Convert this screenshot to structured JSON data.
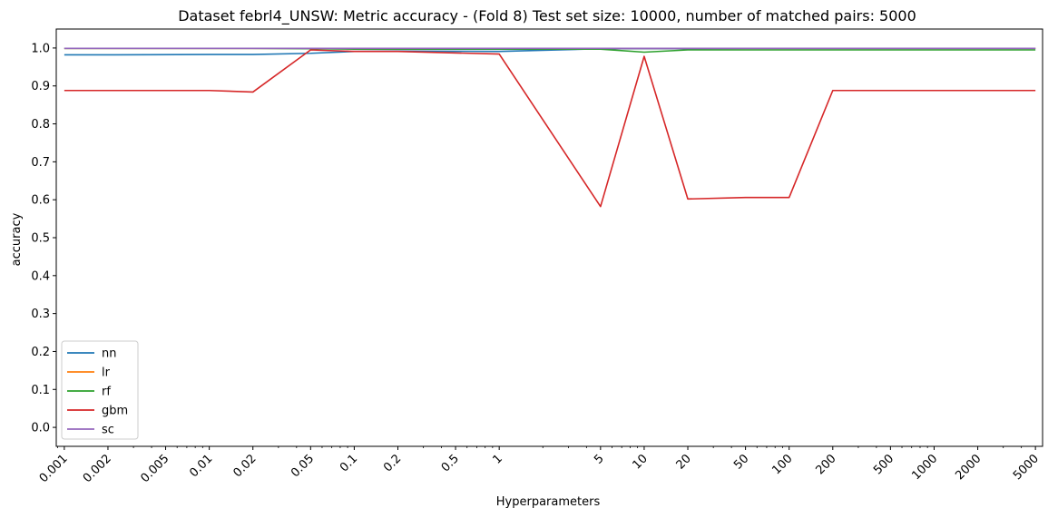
{
  "chart_data": {
    "type": "line",
    "title": "Dataset febrl4_UNSW: Metric accuracy - (Fold 8) Test set size: 10000, number of matched pairs: 5000",
    "xlabel": "Hyperparameters",
    "ylabel": "accuracy",
    "x_scale": "log",
    "xlim": [
      0.00088,
      5600
    ],
    "ylim": [
      -0.05,
      1.05
    ],
    "x_ticks": [
      0.001,
      0.002,
      0.005,
      0.01,
      0.02,
      0.05,
      0.1,
      0.2,
      0.5,
      1,
      5,
      10,
      20,
      50,
      100,
      200,
      500,
      1000,
      2000,
      5000
    ],
    "x_tick_labels": [
      "0.001",
      "0.002",
      "0.005",
      "0.01",
      "0.02",
      "0.05",
      "0.1",
      "0.2",
      "0.5",
      "1",
      "5",
      "10",
      "20",
      "50",
      "100",
      "200",
      "500",
      "1000",
      "2000",
      "5000"
    ],
    "y_ticks": [
      0.0,
      0.1,
      0.2,
      0.3,
      0.4,
      0.5,
      0.6,
      0.7,
      0.8,
      0.9,
      1.0
    ],
    "y_tick_labels": [
      "0.0",
      "0.1",
      "0.2",
      "0.3",
      "0.4",
      "0.5",
      "0.6",
      "0.7",
      "0.8",
      "0.9",
      "1.0"
    ],
    "grid": false,
    "legend_position": "lower-left",
    "x": [
      0.001,
      0.002,
      0.01,
      0.02,
      0.05,
      0.1,
      0.2,
      1,
      5,
      10,
      20,
      50,
      100,
      200,
      5000
    ],
    "series": [
      {
        "name": "nn",
        "color": "#1f77b4",
        "values": [
          0.982,
          0.982,
          0.983,
          0.983,
          0.986,
          0.991,
          0.992,
          0.991,
          0.998,
          0.998,
          0.998,
          0.999,
          0.999,
          0.999,
          0.999
        ]
      },
      {
        "name": "lr",
        "color": "#ff7f0e",
        "values": [
          0.999,
          0.999,
          0.999,
          0.999,
          0.999,
          0.999,
          0.999,
          0.999,
          0.999,
          0.999,
          0.999,
          0.999,
          0.999,
          0.999,
          0.999
        ]
      },
      {
        "name": "rf",
        "color": "#2ca02c",
        "values": [
          0.999,
          0.999,
          0.999,
          0.999,
          0.998,
          0.997,
          0.997,
          0.997,
          0.997,
          0.989,
          0.995,
          0.995,
          0.995,
          0.995,
          0.995
        ]
      },
      {
        "name": "gbm",
        "color": "#d62728",
        "values": [
          0.888,
          0.888,
          0.888,
          0.884,
          0.995,
          0.991,
          0.991,
          0.984,
          0.582,
          0.978,
          0.602,
          0.606,
          0.606,
          0.888,
          0.888
        ]
      },
      {
        "name": "sc",
        "color": "#9467bd",
        "values": [
          0.999,
          0.999,
          0.999,
          0.999,
          0.999,
          0.999,
          0.999,
          0.999,
          0.999,
          0.999,
          0.999,
          0.999,
          0.999,
          0.999,
          0.999
        ]
      }
    ]
  }
}
